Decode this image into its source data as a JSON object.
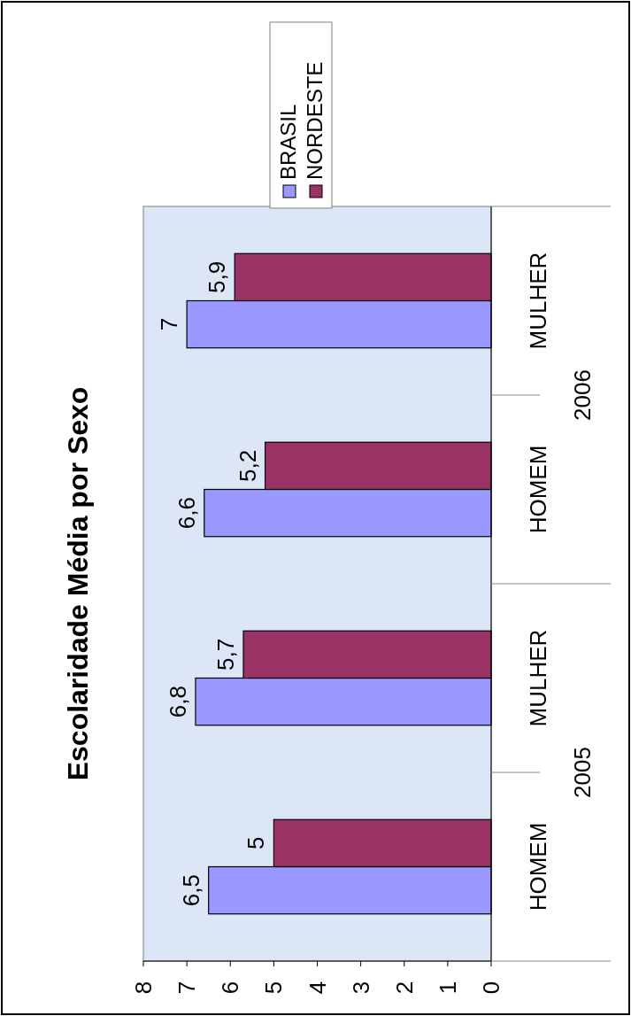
{
  "chart_data": {
    "type": "bar",
    "orientation": "horizontal",
    "title": "Escolaridade Média por Sexo",
    "categories": [
      "MULHER",
      "HOMEM",
      "MULHER",
      "HOMEM"
    ],
    "annotations": [
      "2006",
      "2005"
    ],
    "series": [
      {
        "name": "BRASIL",
        "color": "#9999ff",
        "values": [
          7,
          6.6,
          6.8,
          6.5
        ],
        "value_labels": [
          "7",
          "6,6",
          "6,8",
          "6,5"
        ]
      },
      {
        "name": "NORDESTE",
        "color": "#993366",
        "values": [
          5.9,
          5.2,
          5.7,
          5
        ],
        "value_labels": [
          "5,9",
          "5,2",
          "5,7",
          "5"
        ]
      }
    ],
    "xlim": [
      8,
      0
    ],
    "xticks": [
      0,
      1,
      2,
      3,
      4,
      5,
      6,
      7,
      8
    ],
    "legend": "top right"
  }
}
